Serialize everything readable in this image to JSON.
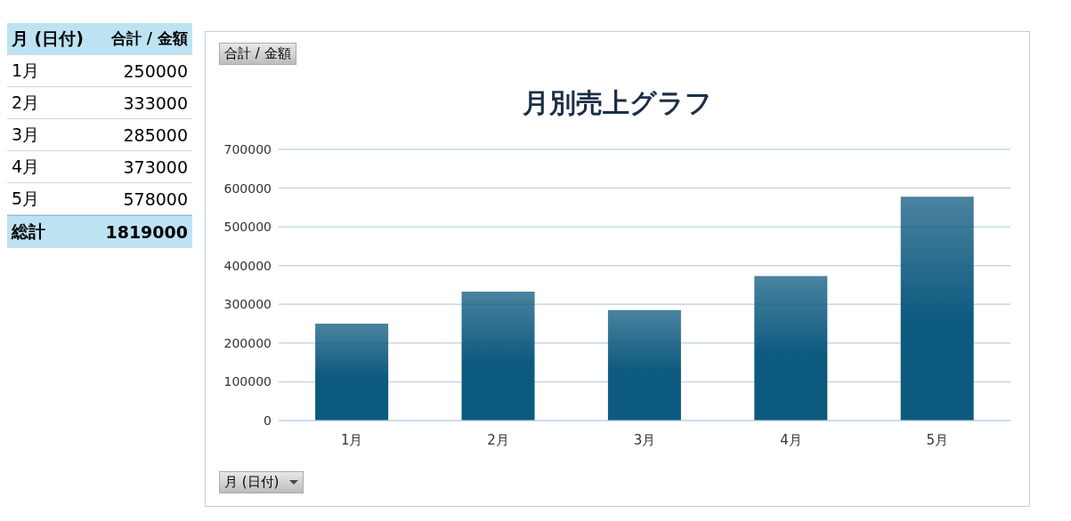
{
  "chart_data": {
    "type": "bar",
    "title": "月別売上グラフ",
    "xlabel": "月 (日付)",
    "categories": [
      "1月",
      "2月",
      "3月",
      "4月",
      "5月"
    ],
    "values": [
      250000,
      333000,
      285000,
      373000,
      578000
    ],
    "color": "#0d5a7f",
    "ylim": [
      0,
      700000
    ],
    "yticks": [
      0,
      100000,
      200000,
      300000,
      400000,
      500000,
      600000,
      700000
    ],
    "grid": "y",
    "annotations": [
      "合計 / 金額",
      "250000",
      "333000",
      "285000",
      "373000",
      "578000",
      "総計",
      "1819000"
    ]
  }
}
